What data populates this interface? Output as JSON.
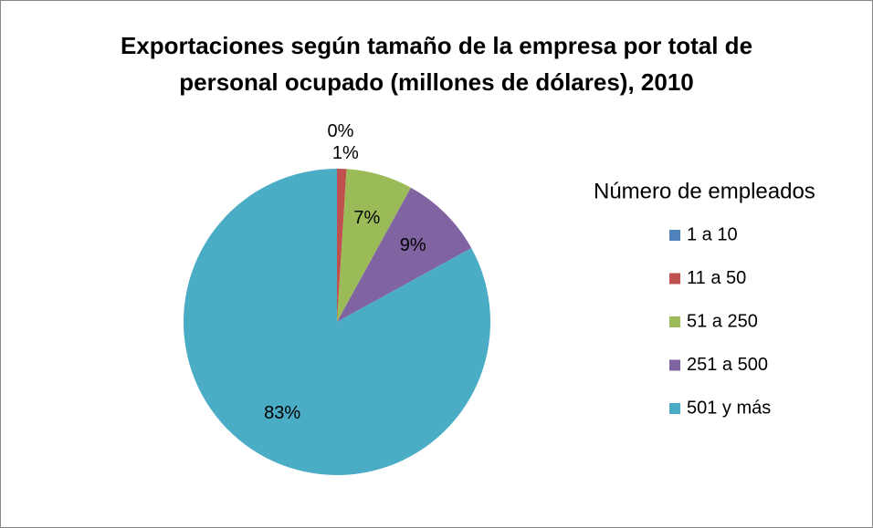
{
  "chart_data": {
    "type": "pie",
    "title": "Exportaciones según tamaño de la empresa por total de\npersonal ocupado  (millones de dólares), 2010",
    "legend_title": "Número de empleados",
    "categories": [
      "1 a 10",
      "11 a 50",
      "51 a 250",
      "251 a 500",
      "501 y más"
    ],
    "values": [
      0,
      1,
      7,
      9,
      83
    ],
    "colors": [
      "#4f81bd",
      "#c0504d",
      "#9bbb59",
      "#8064a2",
      "#4bacc6"
    ],
    "legend": "right"
  }
}
